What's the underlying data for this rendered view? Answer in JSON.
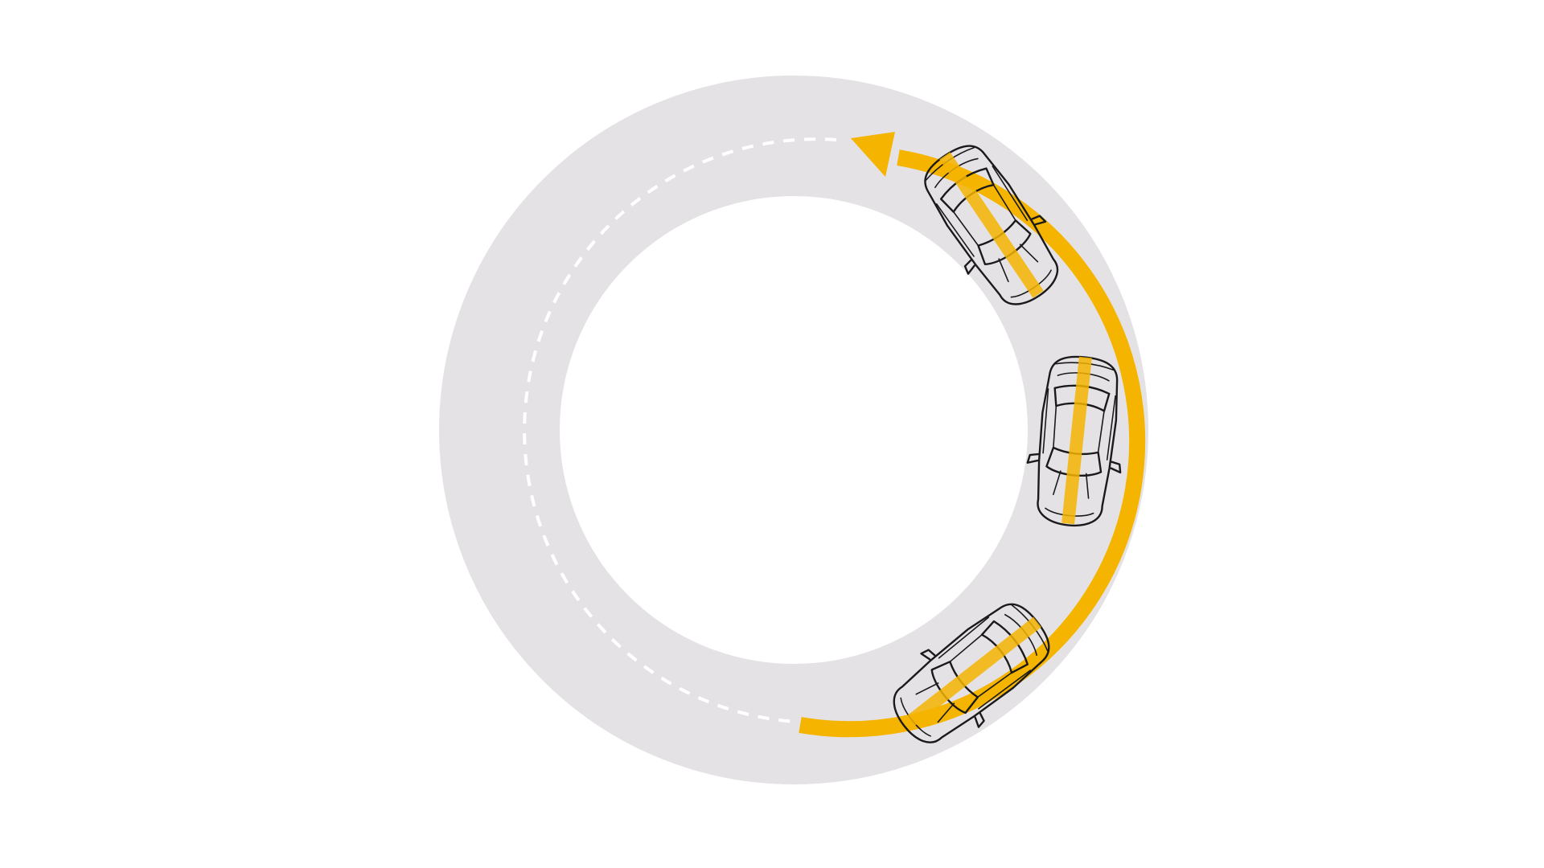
{
  "diagram": {
    "colors": {
      "background": "#ffffff",
      "track": "#e5e2e6",
      "lane_marking": "#ffffff",
      "path": "#f5b400",
      "car_body": "#ffffff",
      "car_outline": "#1a1a1a"
    },
    "elements": {
      "track": "circular-track",
      "lane_marking": "dashed-centre-line",
      "path": "curved-driving-path",
      "arrow": "direction-arrow",
      "car_icon": "car-top-view-icon"
    },
    "cars": [
      {
        "name": "car-start",
        "sequence": 1
      },
      {
        "name": "car-middle",
        "sequence": 2
      },
      {
        "name": "car-end",
        "sequence": 3
      }
    ]
  }
}
